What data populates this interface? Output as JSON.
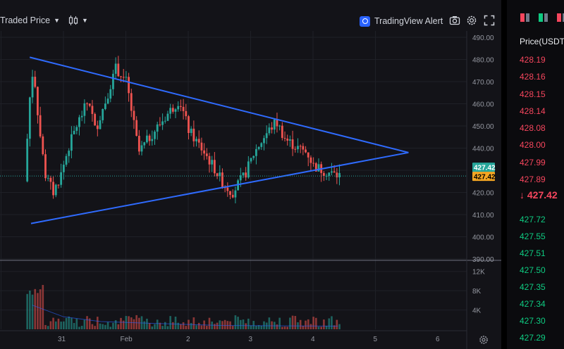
{
  "toolbar": {
    "traded_price_label": "Traded Price",
    "alert_label": "TradingView Alert"
  },
  "price_tags": {
    "upper": "427.42",
    "lower": "427.42"
  },
  "chart_data": {
    "type": "candlestick",
    "price_axis": {
      "ticks": [
        "490.00",
        "480.00",
        "470.00",
        "460.00",
        "450.00",
        "440.00",
        "430.00",
        "420.00",
        "410.00",
        "400.00",
        "390.00"
      ],
      "range": [
        390,
        490
      ]
    },
    "volume_axis": {
      "ticks": [
        "12K",
        "8K",
        "4K"
      ],
      "range": [
        0,
        14000
      ]
    },
    "time_axis": {
      "ticks": [
        "31",
        "Feb",
        "2",
        "3",
        "4",
        "5",
        "6"
      ]
    },
    "last_price": 427.42,
    "triangle": {
      "upper_line": [
        [
          -1.6,
          481
        ],
        [
          1.65,
          438
        ]
      ],
      "lower_line": [
        [
          -3.4,
          406
        ],
        [
          1.65,
          438
        ]
      ]
    },
    "colors": {
      "up": "#26a69a",
      "down": "#ef5350",
      "pattern": "#2f6bff",
      "background": "#131318"
    }
  },
  "orderbook": {
    "header": "Price(USDT)",
    "asks": [
      "428.19",
      "428.16",
      "428.15",
      "428.14",
      "428.08",
      "428.00",
      "427.99",
      "427.89"
    ],
    "last": "↓ 427.42",
    "bids": [
      "427.72",
      "427.55",
      "427.51",
      "427.50",
      "427.35",
      "427.34",
      "427.30",
      "427.29"
    ]
  }
}
